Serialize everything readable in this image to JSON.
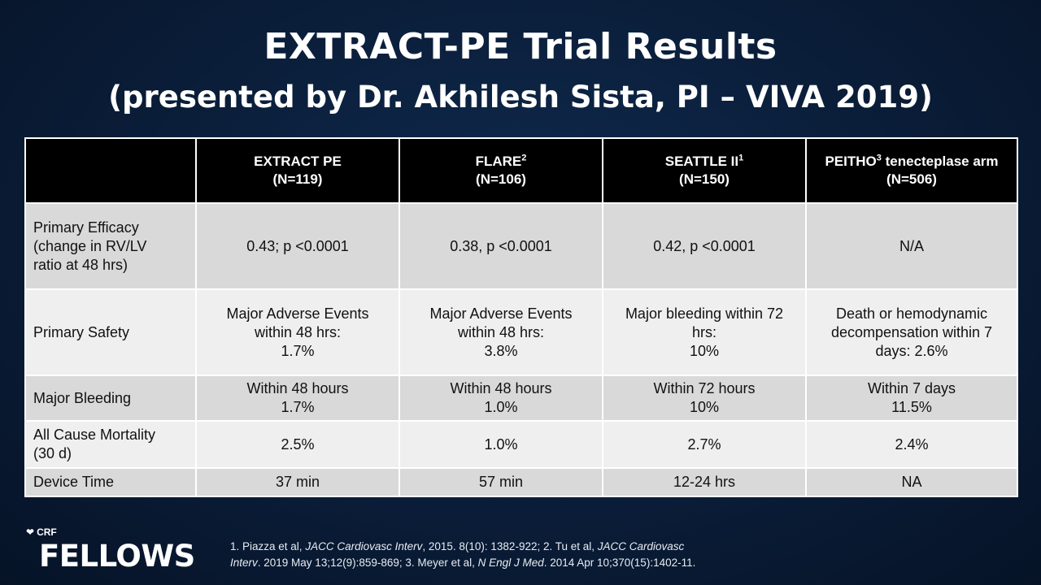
{
  "slide": {
    "title": "EXTRACT-PE Trial Results",
    "subtitle": "(presented by Dr. Akhilesh Sista, PI – VIVA 2019)"
  },
  "table": {
    "columns": [
      {
        "name": "EXTRACT PE",
        "sup": "",
        "name_suffix": "",
        "n": "(N=119)"
      },
      {
        "name": "FLARE",
        "sup": "2",
        "name_suffix": "",
        "n": "(N=106)"
      },
      {
        "name": "SEATTLE II",
        "sup": "1",
        "name_suffix": "",
        "n": "(N=150)"
      },
      {
        "name": "PEITHO",
        "sup": "3",
        "name_suffix": " tenecteplase arm",
        "n": "(N=506)"
      }
    ],
    "rows": [
      {
        "label": [
          "Primary Efficacy",
          "(change in RV/LV",
          "ratio at 48 hrs)"
        ],
        "cells": [
          [
            "0.43; p <0.0001"
          ],
          [
            "0.38, p <0.0001"
          ],
          [
            "0.42, p <0.0001"
          ],
          [
            "N/A"
          ]
        ]
      },
      {
        "label": [
          "Primary Safety"
        ],
        "cells": [
          [
            "Major Adverse Events",
            "within 48 hrs:",
            "1.7%"
          ],
          [
            "Major Adverse Events",
            "within 48 hrs:",
            "3.8%"
          ],
          [
            "Major bleeding within 72",
            "hrs:",
            "10%"
          ],
          [
            "Death or hemodynamic",
            "decompensation within 7",
            "days: 2.6%"
          ]
        ]
      },
      {
        "label": [
          "Major Bleeding"
        ],
        "cells": [
          [
            "Within 48 hours",
            "1.7%"
          ],
          [
            "Within 48 hours",
            "1.0%"
          ],
          [
            "Within 72 hours",
            "10%"
          ],
          [
            "Within 7 days",
            "11.5%"
          ]
        ]
      },
      {
        "label": [
          "All Cause Mortality",
          "(30 d)"
        ],
        "cells": [
          [
            "2.5%"
          ],
          [
            "1.0%"
          ],
          [
            "2.7%"
          ],
          [
            "2.4%"
          ]
        ]
      },
      {
        "label": [
          "Device Time"
        ],
        "cells": [
          [
            "37 min"
          ],
          [
            "57 min"
          ],
          [
            "12-24 hrs"
          ],
          [
            "NA"
          ]
        ]
      }
    ]
  },
  "footnote": {
    "line1_a": "1. Piazza et al, ",
    "line1_b": "JACC Cardiovasc Interv",
    "line1_c": ", 2015. 8(10): 1382-922; 2. Tu et al, ",
    "line1_d": "JACC Cardiovasc",
    "line2_a": "Interv",
    "line2_b": ". 2019 May 13;12(9):859-869;  3. Meyer et al, ",
    "line2_c": "N Engl J Med",
    "line2_d": ". 2014 Apr 10;370(15):1402-11."
  },
  "logo": {
    "small": "CRF",
    "big": "FELLOWS"
  }
}
